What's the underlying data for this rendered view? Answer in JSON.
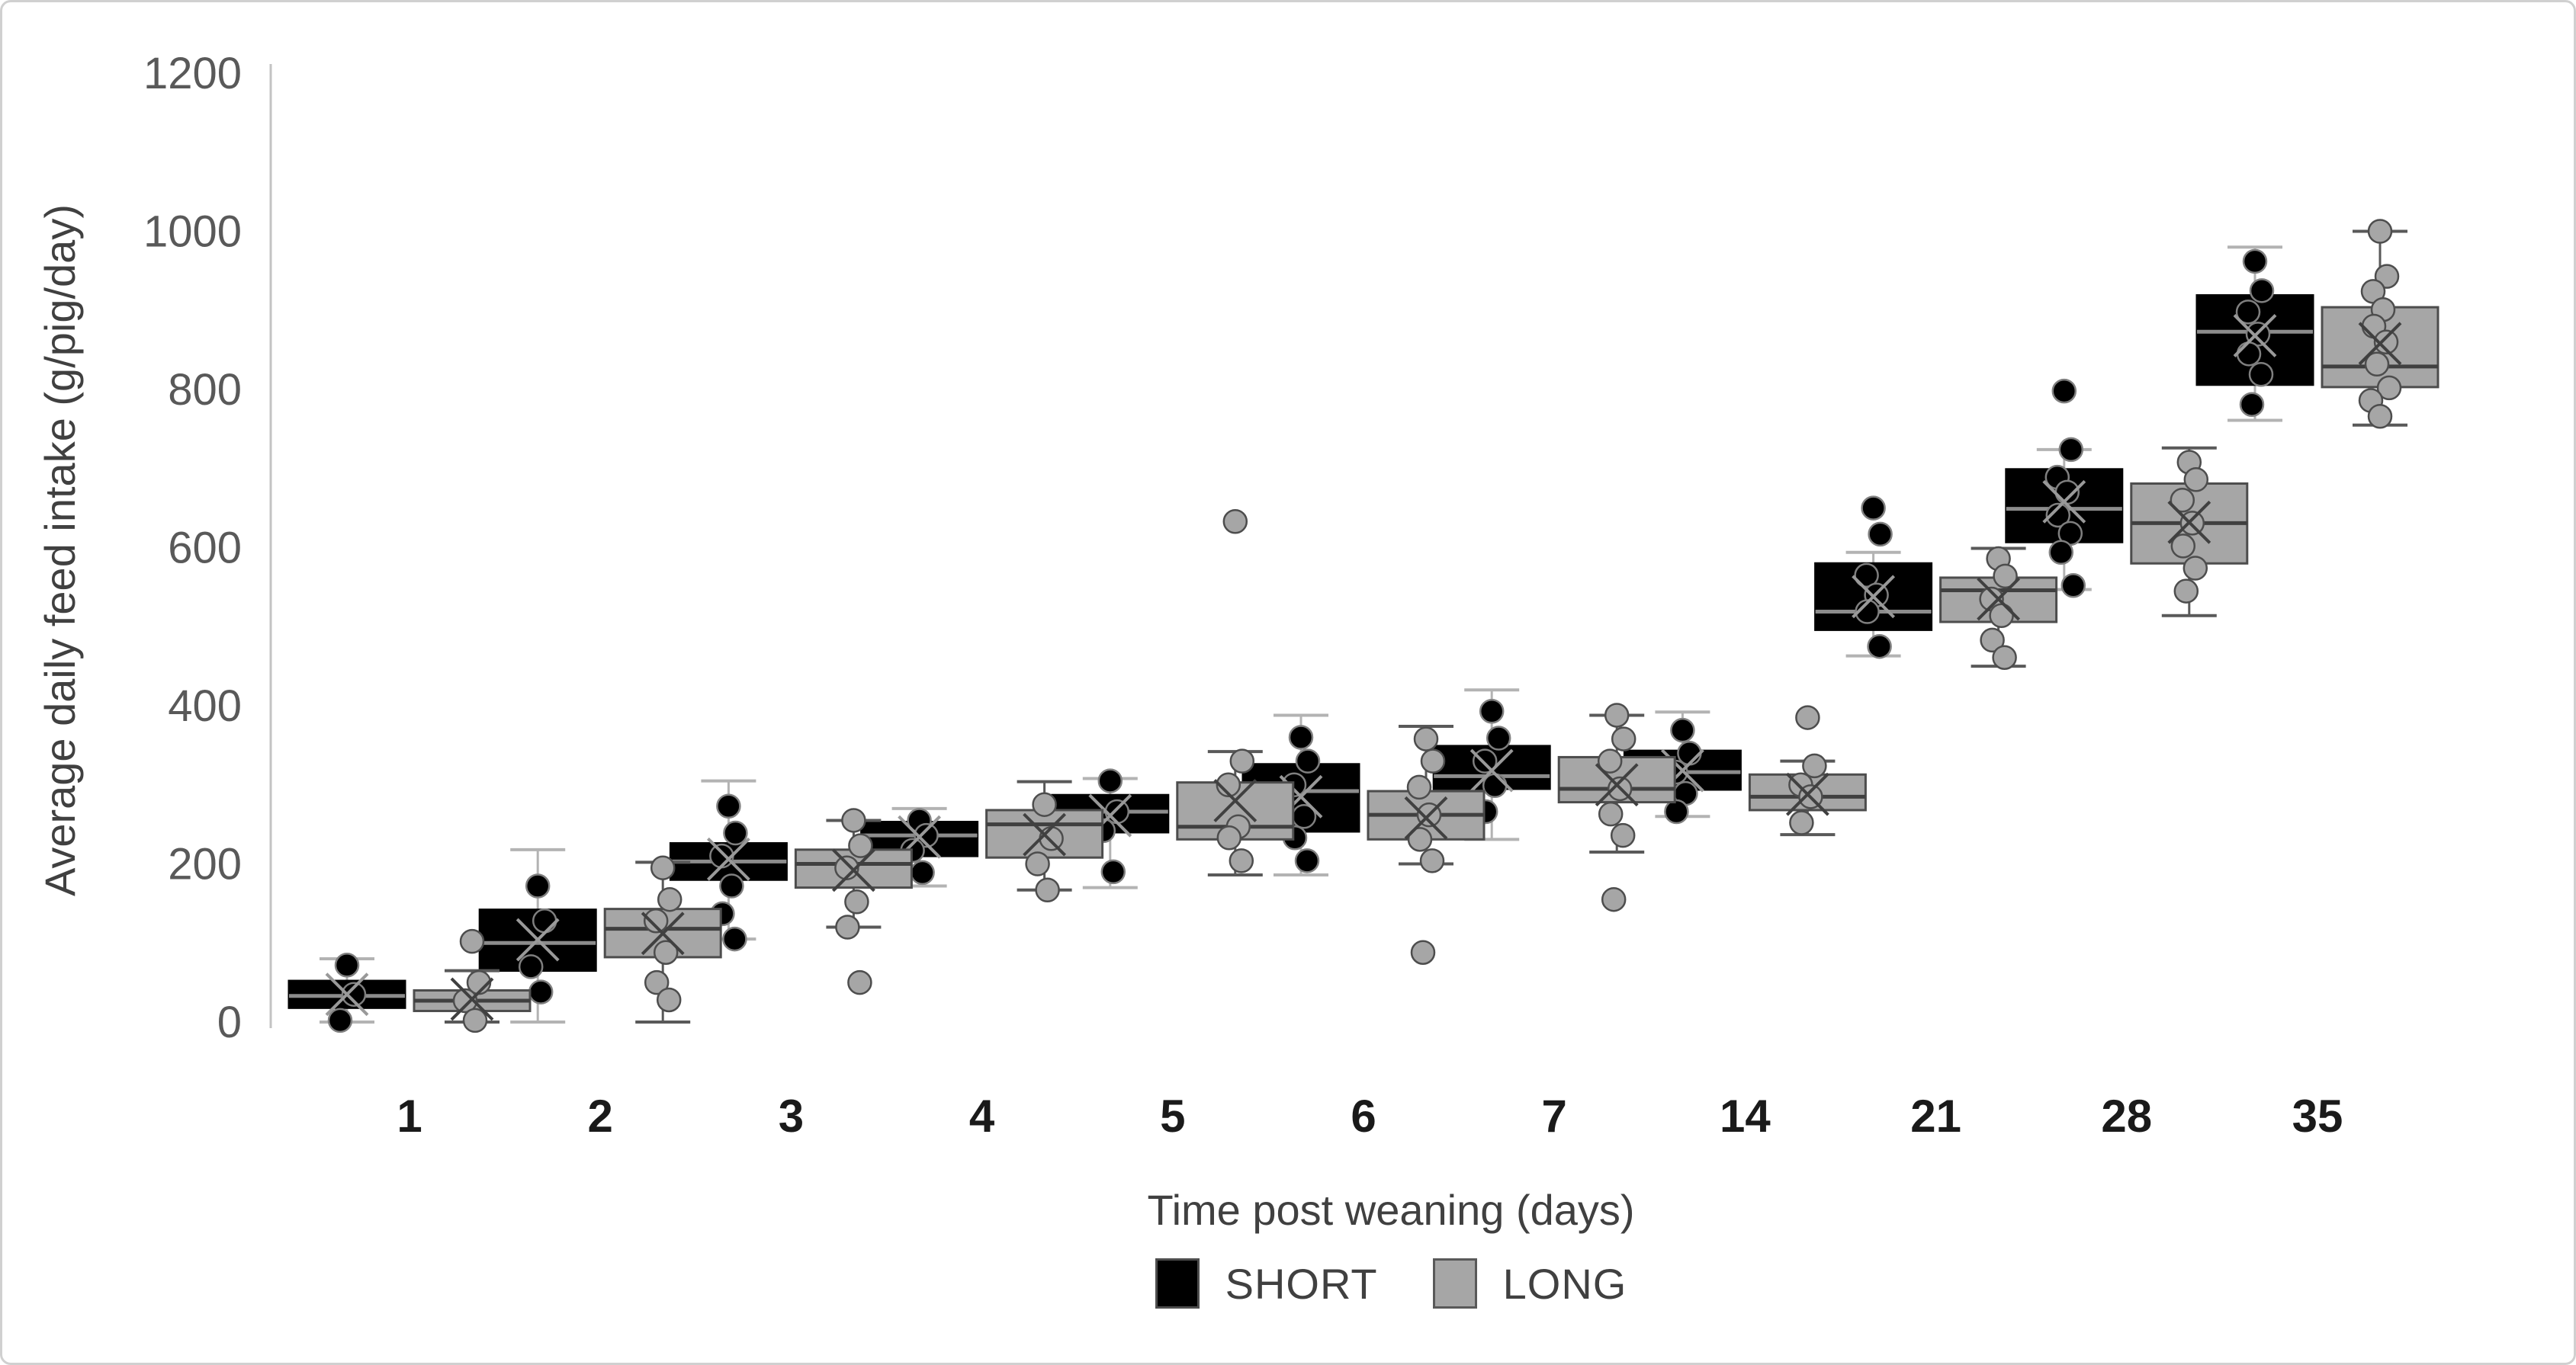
{
  "y_axis": {
    "title": "Average daily feed intake (g/pig/day)",
    "ticks": [
      0,
      200,
      400,
      600,
      800,
      1000,
      1200
    ]
  },
  "x_axis": {
    "title": "Time post weaning (days)"
  },
  "legend": {
    "items": [
      {
        "label": "SHORT",
        "fill": "#000000",
        "border": "#4d4d4d"
      },
      {
        "label": "LONG",
        "fill": "#a6a6a6",
        "border": "#595959"
      }
    ]
  },
  "chart_data": {
    "type": "box",
    "title": "",
    "xlabel": "Time post weaning (days)",
    "ylabel": "Average daily feed intake (g/pig/day)",
    "categories": [
      "1",
      "2",
      "3",
      "4",
      "5",
      "6",
      "7",
      "14",
      "21",
      "28",
      "35"
    ],
    "ylim": [
      0,
      1200
    ],
    "grid": false,
    "legend_position": "bottom",
    "series": [
      {
        "name": "SHORT",
        "fill": "#000000",
        "stroke": "#000000",
        "median_color": "#8c8c8c",
        "whisker_color": "#b3b3b3",
        "point_fill": "#000000",
        "point_stroke": "#7f7f7f",
        "mean_color": "#999999",
        "legend_border": "#4d4d4d",
        "stats": [
          {
            "low": 0,
            "q1": 18,
            "median": 33,
            "q3": 52,
            "high": 80,
            "mean": 35,
            "points": [
              72,
              35,
              2
            ]
          },
          {
            "low": 0,
            "q1": 65,
            "median": 100,
            "q3": 142,
            "high": 218,
            "mean": 104,
            "points": [
              172,
              128,
              70,
              38
            ]
          },
          {
            "low": 105,
            "q1": 180,
            "median": 203,
            "q3": 226,
            "high": 305,
            "mean": 206,
            "points": [
              273,
              239,
              210,
              172,
              137,
              105
            ]
          },
          {
            "low": 172,
            "q1": 210,
            "median": 236,
            "q3": 253,
            "high": 270,
            "mean": 234,
            "points": [
              255,
              236,
              217,
              189
            ]
          },
          {
            "low": 170,
            "q1": 240,
            "median": 266,
            "q3": 287,
            "high": 308,
            "mean": 261,
            "points": [
              305,
              266,
              242,
              190
            ]
          },
          {
            "low": 186,
            "q1": 241,
            "median": 292,
            "q3": 326,
            "high": 388,
            "mean": 285,
            "points": [
              360,
              330,
              300,
              260,
              233,
              204
            ]
          },
          {
            "low": 231,
            "q1": 295,
            "median": 311,
            "q3": 349,
            "high": 420,
            "mean": 318,
            "points": [
              393,
              359,
              330,
              299,
              266
            ]
          },
          {
            "low": 260,
            "q1": 294,
            "median": 316,
            "q3": 343,
            "high": 392,
            "mean": 318,
            "points": [
              369,
              340,
              316,
              289,
              266
            ]
          },
          {
            "low": 463,
            "q1": 496,
            "median": 519,
            "q3": 580,
            "high": 594,
            "mean": 538,
            "points": [
              650,
              617,
              565,
              540,
              519,
              475
            ]
          },
          {
            "low": 547,
            "q1": 607,
            "median": 649,
            "q3": 699,
            "high": 724,
            "mean": 658,
            "points": [
              798,
              724,
              689,
              670,
              641,
              618,
              594,
              552
            ]
          },
          {
            "low": 761,
            "q1": 806,
            "median": 873,
            "q3": 919,
            "high": 980,
            "mean": 868,
            "points": [
              962,
              925,
              898,
              870,
              845,
              819,
              781
            ]
          }
        ]
      },
      {
        "name": "LONG",
        "fill": "#a6a6a6",
        "stroke": "#4d4d4d",
        "median_color": "#404040",
        "whisker_color": "#595959",
        "point_fill": "#a6a6a6",
        "point_stroke": "#4d4d4d",
        "mean_color": "#404040",
        "legend_border": "#595959",
        "stats": [
          {
            "low": 0,
            "q1": 14,
            "median": 27,
            "q3": 40,
            "high": 65,
            "mean": 29,
            "points": [
              102,
              50,
              27,
              2
            ]
          },
          {
            "low": 0,
            "q1": 82,
            "median": 118,
            "q3": 143,
            "high": 202,
            "mean": 112,
            "points": [
              195,
              155,
              128,
              88,
              50,
              28
            ]
          },
          {
            "low": 120,
            "q1": 170,
            "median": 200,
            "q3": 218,
            "high": 255,
            "mean": 192,
            "points": [
              255,
              223,
              195,
              152,
              120,
              50
            ]
          },
          {
            "low": 167,
            "q1": 208,
            "median": 250,
            "q3": 268,
            "high": 304,
            "mean": 237,
            "points": [
              275,
              232,
              200,
              167
            ]
          },
          {
            "low": 186,
            "q1": 231,
            "median": 247,
            "q3": 303,
            "high": 342,
            "mean": 280,
            "points": [
              633,
              330,
              300,
              247,
              233,
              204
            ]
          },
          {
            "low": 200,
            "q1": 231,
            "median": 262,
            "q3": 292,
            "high": 374,
            "mean": 258,
            "points": [
              358,
              330,
              297,
              262,
              231,
              204,
              88
            ]
          },
          {
            "low": 215,
            "q1": 278,
            "median": 295,
            "q3": 335,
            "high": 388,
            "mean": 300,
            "points": [
              388,
              358,
              330,
              295,
              263,
              236,
              155
            ]
          },
          {
            "low": 237,
            "q1": 268,
            "median": 285,
            "q3": 313,
            "high": 330,
            "mean": 288,
            "points": [
              385,
              324,
              300,
              285,
              252
            ]
          },
          {
            "low": 450,
            "q1": 506,
            "median": 546,
            "q3": 562,
            "high": 599,
            "mean": 535,
            "points": [
              586,
              564,
              535,
              514,
              483,
              461
            ]
          },
          {
            "low": 514,
            "q1": 580,
            "median": 631,
            "q3": 681,
            "high": 726,
            "mean": 632,
            "points": [
              708,
              686,
              660,
              631,
              602,
              574,
              545
            ]
          },
          {
            "low": 755,
            "q1": 803,
            "median": 829,
            "q3": 904,
            "high": 1000,
            "mean": 858,
            "points": [
              1000,
              943,
              924,
              901,
              880,
              860,
              832,
              802,
              786,
              766
            ]
          }
        ]
      }
    ]
  }
}
